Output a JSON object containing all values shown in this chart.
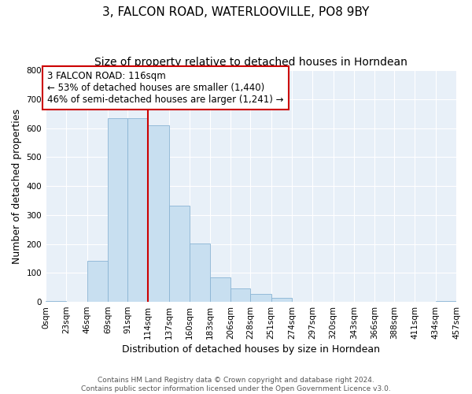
{
  "title": "3, FALCON ROAD, WATERLOOVILLE, PO8 9BY",
  "subtitle": "Size of property relative to detached houses in Horndean",
  "xlabel": "Distribution of detached houses by size in Horndean",
  "ylabel": "Number of detached properties",
  "bar_color": "#c8dff0",
  "bar_edge_color": "#8ab4d4",
  "plot_bg_color": "#e8f0f8",
  "fig_bg_color": "#ffffff",
  "grid_color": "#ffffff",
  "bin_edges": [
    0,
    23,
    46,
    69,
    91,
    114,
    137,
    160,
    183,
    206,
    228,
    251,
    274,
    297,
    320,
    343,
    366,
    388,
    411,
    434,
    457
  ],
  "bin_labels": [
    "0sqm",
    "23sqm",
    "46sqm",
    "69sqm",
    "91sqm",
    "114sqm",
    "137sqm",
    "160sqm",
    "183sqm",
    "206sqm",
    "228sqm",
    "251sqm",
    "274sqm",
    "297sqm",
    "320sqm",
    "343sqm",
    "366sqm",
    "388sqm",
    "411sqm",
    "434sqm",
    "457sqm"
  ],
  "bar_heights": [
    3,
    0,
    143,
    635,
    634,
    610,
    333,
    201,
    84,
    46,
    27,
    13,
    0,
    0,
    0,
    0,
    0,
    0,
    0,
    3
  ],
  "vline_x": 114,
  "vline_color": "#cc0000",
  "annotation_title": "3 FALCON ROAD: 116sqm",
  "annotation_line1": "← 53% of detached houses are smaller (1,440)",
  "annotation_line2": "46% of semi-detached houses are larger (1,241) →",
  "annotation_box_color": "#ffffff",
  "annotation_box_edge": "#cc0000",
  "ylim": [
    0,
    800
  ],
  "yticks": [
    0,
    100,
    200,
    300,
    400,
    500,
    600,
    700,
    800
  ],
  "footer_line1": "Contains HM Land Registry data © Crown copyright and database right 2024.",
  "footer_line2": "Contains public sector information licensed under the Open Government Licence v3.0.",
  "title_fontsize": 11,
  "subtitle_fontsize": 10,
  "axis_label_fontsize": 9,
  "tick_fontsize": 7.5,
  "annotation_fontsize": 8.5,
  "footer_fontsize": 6.5
}
